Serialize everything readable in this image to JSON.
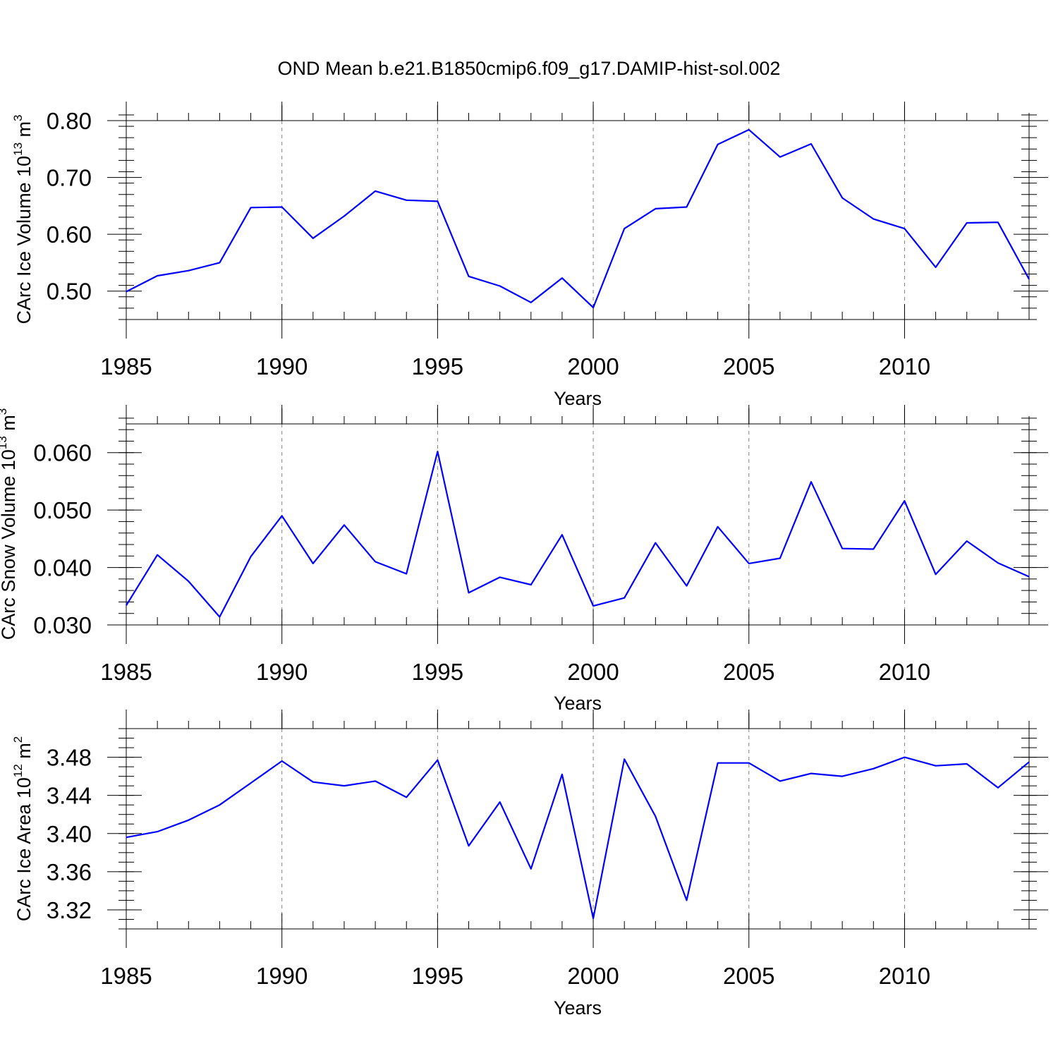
{
  "figure_title": "OND Mean b.e21.B1850cmip6.f09_g17.DAMIP-hist-sol.002",
  "colors": {
    "line": "#0000ff",
    "axes": "#000000",
    "grid": "#808080"
  },
  "chart_data": [
    {
      "type": "line",
      "title": "OND Mean b.e21.B1850cmip6.f09_g17.DAMIP-hist-sol.002",
      "xlabel": "Years",
      "ylabel": {
        "main": "CArc Ice Volume 10",
        "exp": "13",
        "unit": " m",
        "unit_exp": "3"
      },
      "xlim": [
        1985,
        2014
      ],
      "ylim": [
        0.45,
        0.8
      ],
      "xticks": [
        1985,
        1990,
        1995,
        2000,
        2005,
        2010
      ],
      "xtick_labels": [
        "1985",
        "1990",
        "1995",
        "2000",
        "2005",
        "2010"
      ],
      "yticks": [
        0.5,
        0.6,
        0.7,
        0.8
      ],
      "ytick_labels": [
        "0.50",
        "0.60",
        "0.70",
        "0.80"
      ],
      "yminor_step": 0.02,
      "grid": "vertical dashed at major x ticks",
      "x": [
        1985,
        1986,
        1987,
        1988,
        1989,
        1990,
        1991,
        1992,
        1993,
        1994,
        1995,
        1996,
        1997,
        1998,
        1999,
        2000,
        2001,
        2002,
        2003,
        2004,
        2005,
        2006,
        2007,
        2008,
        2009,
        2010,
        2011,
        2012,
        2013,
        2014
      ],
      "values": [
        0.499,
        0.527,
        0.536,
        0.55,
        0.647,
        0.648,
        0.593,
        0.632,
        0.676,
        0.66,
        0.658,
        0.526,
        0.509,
        0.48,
        0.523,
        0.471,
        0.61,
        0.645,
        0.648,
        0.758,
        0.784,
        0.736,
        0.759,
        0.664,
        0.627,
        0.61,
        0.542,
        0.62,
        0.621,
        0.521
      ]
    },
    {
      "type": "line",
      "xlabel": "Years",
      "ylabel": {
        "main": "CArc Snow Volume 10",
        "exp": "13",
        "unit": " m",
        "unit_exp": "3"
      },
      "xlim": [
        1985,
        2014
      ],
      "ylim": [
        0.03,
        0.065
      ],
      "xticks": [
        1985,
        1990,
        1995,
        2000,
        2005,
        2010
      ],
      "xtick_labels": [
        "1985",
        "1990",
        "1995",
        "2000",
        "2005",
        "2010"
      ],
      "yticks": [
        0.03,
        0.04,
        0.05,
        0.06
      ],
      "ytick_labels": [
        "0.030",
        "0.040",
        "0.050",
        "0.060"
      ],
      "yminor_step": 0.002,
      "grid": "vertical dashed at major x ticks",
      "x": [
        1985,
        1986,
        1987,
        1988,
        1989,
        1990,
        1991,
        1992,
        1993,
        1994,
        1995,
        1996,
        1997,
        1998,
        1999,
        2000,
        2001,
        2002,
        2003,
        2004,
        2005,
        2006,
        2007,
        2008,
        2009,
        2010,
        2011,
        2012,
        2013,
        2014
      ],
      "values": [
        0.0334,
        0.0422,
        0.0376,
        0.0314,
        0.0419,
        0.049,
        0.0407,
        0.0474,
        0.041,
        0.0389,
        0.0602,
        0.0356,
        0.0383,
        0.037,
        0.0457,
        0.0333,
        0.0347,
        0.0443,
        0.0368,
        0.0471,
        0.0407,
        0.0416,
        0.0549,
        0.0433,
        0.0432,
        0.0516,
        0.0388,
        0.0446,
        0.0408,
        0.0384
      ]
    },
    {
      "type": "line",
      "xlabel": "Years",
      "ylabel": {
        "main": "CArc Ice Area 10",
        "exp": "12",
        "unit": " m",
        "unit_exp": "2"
      },
      "xlim": [
        1985,
        2014
      ],
      "ylim": [
        3.3,
        3.51
      ],
      "xticks": [
        1985,
        1990,
        1995,
        2000,
        2005,
        2010
      ],
      "xtick_labels": [
        "1985",
        "1990",
        "1995",
        "2000",
        "2005",
        "2010"
      ],
      "yticks": [
        3.32,
        3.36,
        3.4,
        3.44,
        3.48
      ],
      "ytick_labels": [
        "3.32",
        "3.36",
        "3.40",
        "3.44",
        "3.48"
      ],
      "yminor_step": 0.01,
      "grid": "vertical dashed at major x ticks",
      "x": [
        1985,
        1986,
        1987,
        1988,
        1989,
        1990,
        1991,
        1992,
        1993,
        1994,
        1995,
        1996,
        1997,
        1998,
        1999,
        2000,
        2001,
        2002,
        2003,
        2004,
        2005,
        2006,
        2007,
        2008,
        2009,
        2010,
        2011,
        2012,
        2013,
        2014
      ],
      "values": [
        3.396,
        3.402,
        3.414,
        3.43,
        3.453,
        3.476,
        3.454,
        3.45,
        3.455,
        3.438,
        3.477,
        3.387,
        3.433,
        3.363,
        3.462,
        3.311,
        3.478,
        3.418,
        3.33,
        3.474,
        3.474,
        3.455,
        3.463,
        3.46,
        3.468,
        3.48,
        3.471,
        3.473,
        3.448,
        3.475
      ]
    }
  ]
}
